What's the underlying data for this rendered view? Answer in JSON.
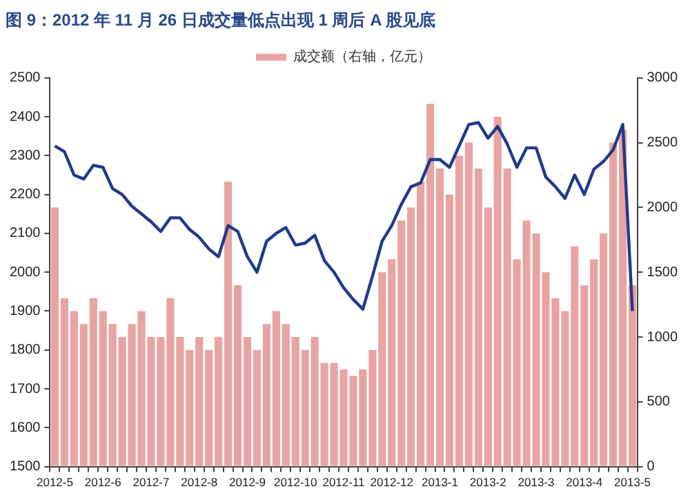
{
  "chart_data": {
    "type": "bar",
    "title": "图 9：2012 年 11 月 26 日成交量低点出现 1 周后 A 股见底",
    "categories": [
      "2012-5",
      null,
      null,
      null,
      null,
      "2012-6",
      null,
      null,
      null,
      null,
      "2012-7",
      null,
      null,
      null,
      null,
      "2012-8",
      null,
      null,
      null,
      null,
      "2012-9",
      null,
      null,
      null,
      null,
      "2012-10",
      null,
      null,
      null,
      null,
      "2012-11",
      null,
      null,
      null,
      null,
      "2012-12",
      null,
      null,
      null,
      null,
      "2013-1",
      null,
      null,
      null,
      null,
      "2013-2",
      null,
      null,
      null,
      null,
      "2013-3",
      null,
      null,
      null,
      null,
      "2013-4",
      null,
      null,
      null,
      null,
      "2013-5"
    ],
    "series": [
      {
        "type": "bar",
        "name": "成交额（右轴，亿元）",
        "color": "#e8a3a3",
        "axis": "y2",
        "values": [
          2000,
          1300,
          1200,
          1100,
          1300,
          1200,
          1100,
          1000,
          1100,
          1200,
          1000,
          1000,
          1300,
          1000,
          900,
          1000,
          900,
          1000,
          2200,
          1400,
          1000,
          900,
          1100,
          1200,
          1100,
          1000,
          900,
          1000,
          800,
          800,
          750,
          700,
          750,
          900,
          1500,
          1600,
          1900,
          2000,
          2200,
          2800,
          2300,
          2100,
          2400,
          2500,
          2300,
          2000,
          2700,
          2300,
          1600,
          1900,
          1800,
          1500,
          1300,
          1200,
          1700,
          1400,
          1600,
          1800,
          2500,
          2600,
          1400
        ]
      },
      {
        "type": "line",
        "color": "#1f3a8c",
        "axis": "y",
        "values": [
          2325,
          2310,
          2250,
          2240,
          2275,
          2270,
          2215,
          2200,
          2170,
          2150,
          2130,
          2105,
          2140,
          2140,
          2110,
          2090,
          2060,
          2040,
          2120,
          2105,
          2040,
          2000,
          2080,
          2100,
          2115,
          2070,
          2075,
          2095,
          2030,
          2000,
          1960,
          1930,
          1905,
          1990,
          2080,
          2120,
          2175,
          2220,
          2230,
          2290,
          2290,
          2270,
          2325,
          2380,
          2385,
          2345,
          2375,
          2330,
          2270,
          2320,
          2320,
          2245,
          2220,
          2190,
          2250,
          2200,
          2265,
          2285,
          2315,
          2380,
          1900
        ]
      }
    ],
    "ylim": [
      1500,
      2500
    ],
    "yticks": [
      1500,
      1600,
      1700,
      1800,
      1900,
      2000,
      2100,
      2200,
      2300,
      2400,
      2500
    ],
    "y2lim": [
      0,
      3000
    ],
    "y2ticks": [
      0,
      500,
      1000,
      1500,
      2000,
      2500,
      3000
    ],
    "grid": false,
    "legend": "top",
    "marker": "none",
    "line_style": "solid"
  }
}
